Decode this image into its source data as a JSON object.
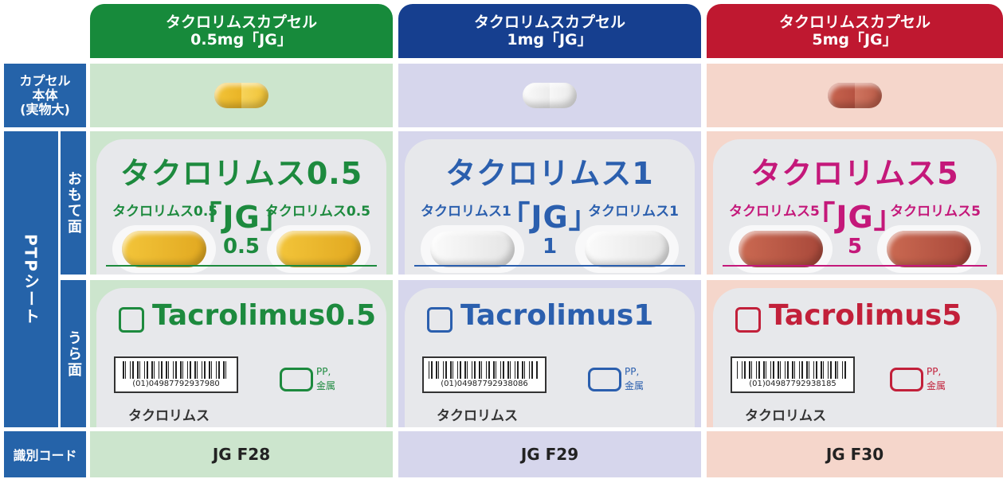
{
  "header": {
    "columns": [
      {
        "line1": "タクロリムスカプセル",
        "line2": "0.5mg「JG」"
      },
      {
        "line1": "タクロリムスカプセル",
        "line2": "1mg「JG」"
      },
      {
        "line1": "タクロリムスカプセル",
        "line2": "5mg「JG」"
      }
    ]
  },
  "row_labels": {
    "capsule": [
      "カプセル",
      "本体",
      "(実物大)"
    ],
    "ptp": "PTPシート",
    "front": "おもて面",
    "back": "うら面",
    "code": "識別コード"
  },
  "products": [
    {
      "front_title": "タクロリムス0.5「JG」",
      "front_small": "タクロリムス0.5",
      "front_mark": "0.5",
      "back_title": "Tacrolimus",
      "back_strength": "0.5",
      "barcode": "(01)04987792937980",
      "recycle_1": "PP,",
      "recycle_2": "金属",
      "back_name": "タクロリムス",
      "code": "JG F28"
    },
    {
      "front_title": "タクロリムス1「JG」",
      "front_small": "タクロリムス1",
      "front_mark": "1",
      "back_title": "Tacrolimus",
      "back_strength": "1",
      "barcode": "(01)04987792938086",
      "recycle_1": "PP,",
      "recycle_2": "金属",
      "back_name": "タクロリムス",
      "code": "JG F29"
    },
    {
      "front_title": "タクロリムス5「JG」",
      "front_small": "タクロリムス5",
      "front_mark": "5",
      "back_title": "Tacrolimus",
      "back_strength": "5",
      "barcode": "(01)04987792938185",
      "recycle_1": "PP,",
      "recycle_2": "金属",
      "back_name": "タクロリムス",
      "code": "JG F30"
    }
  ]
}
